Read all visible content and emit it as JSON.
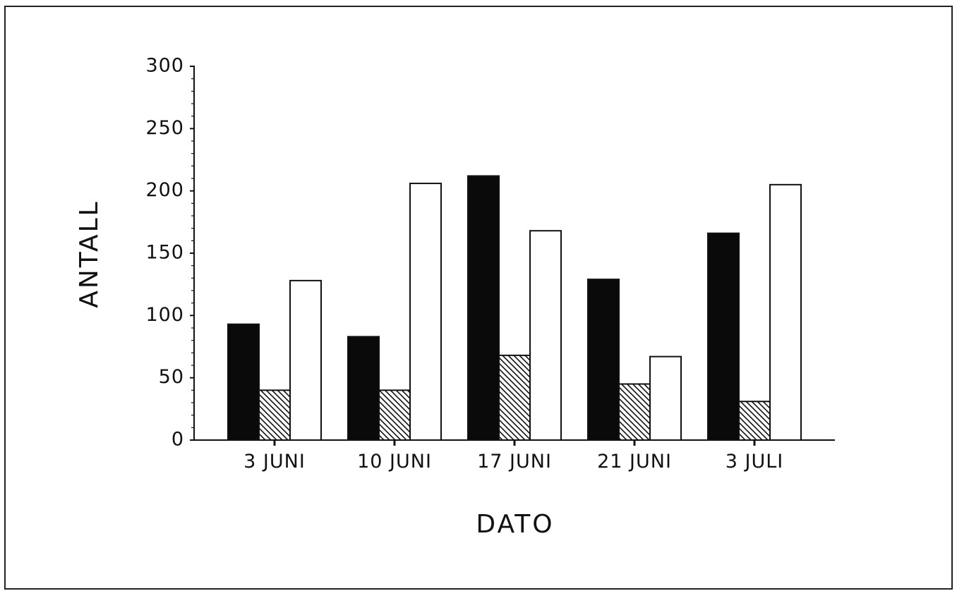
{
  "chart_data": {
    "type": "bar",
    "xlabel": "DATO",
    "ylabel": "ANTALL",
    "categories": [
      "3 JUNI",
      "10 JUNI",
      "17 JUNI",
      "21 JUNI",
      "3 JULI"
    ],
    "series": [
      {
        "fill": "solid-black",
        "values": [
          93,
          83,
          212,
          129,
          166
        ]
      },
      {
        "fill": "diagonal-hatch",
        "values": [
          40,
          40,
          68,
          45,
          31
        ]
      },
      {
        "fill": "white",
        "values": [
          128,
          206,
          168,
          67,
          205
        ]
      }
    ],
    "ylim": [
      0,
      300
    ],
    "yticks": [
      0,
      50,
      100,
      150,
      200,
      250,
      300
    ],
    "grid": false,
    "legend": "none"
  }
}
